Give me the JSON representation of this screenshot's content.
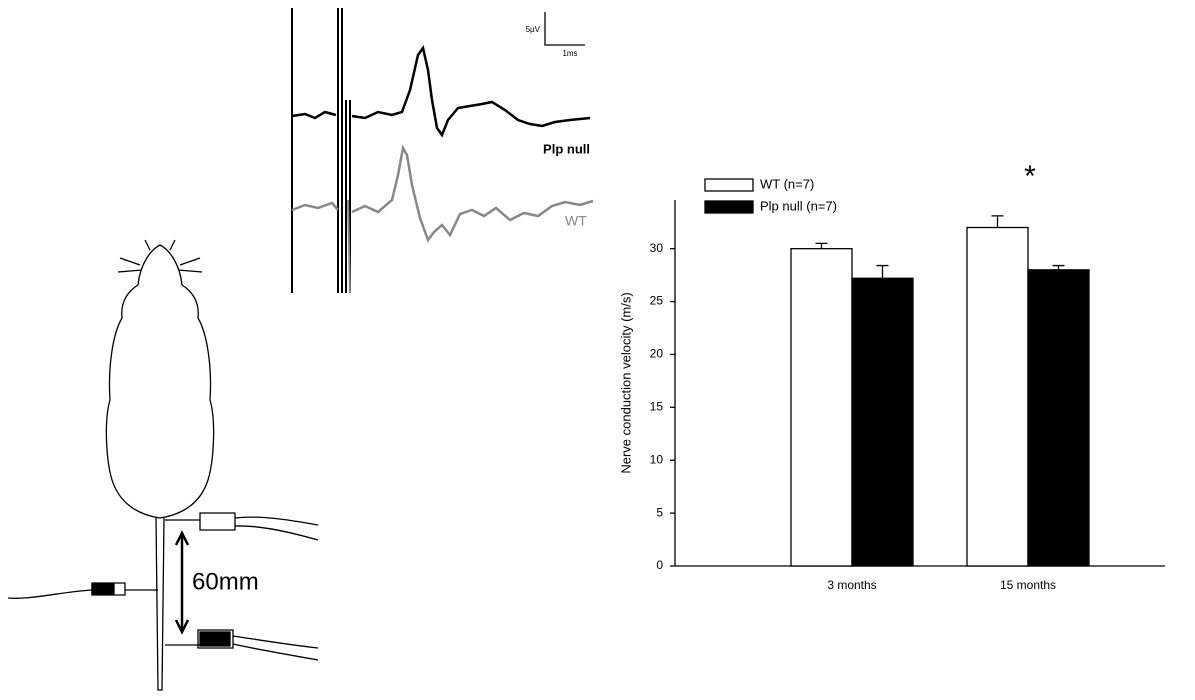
{
  "chart_data": {
    "type": "bar",
    "ylabel": "Nerve conduction velocity (m/s)",
    "categories": [
      "3 months",
      "15 months"
    ],
    "series": [
      {
        "name": "WT (n=7)",
        "color": "#ffffff",
        "values": [
          30,
          32
        ],
        "errors": [
          0.5,
          1.1
        ]
      },
      {
        "name": "Plp null (n=7)",
        "color": "#000000",
        "values": [
          27.2,
          28
        ],
        "errors": [
          1.2,
          0.4
        ]
      }
    ],
    "ylim": [
      0,
      34.6
    ],
    "yticks": [
      0,
      5,
      10,
      15,
      20,
      25,
      30
    ],
    "grid": false,
    "legend": "upper left",
    "annotations": [
      {
        "text": "*",
        "category": 1
      }
    ]
  },
  "traces": {
    "labels": [
      "Plp null",
      "WT"
    ],
    "scale_voltage": "5µV",
    "scale_time": "1ms"
  },
  "setup": {
    "distance": "60mm"
  }
}
